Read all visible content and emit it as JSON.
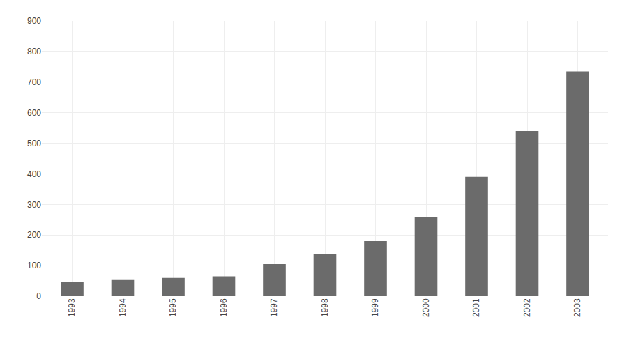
{
  "chart_data": {
    "type": "bar",
    "categories": [
      "1993",
      "1994",
      "1995",
      "1996",
      "1997",
      "1998",
      "1999",
      "2000",
      "2001",
      "2002",
      "2003"
    ],
    "values": [
      48,
      53,
      60,
      65,
      105,
      138,
      180,
      260,
      390,
      540,
      735
    ],
    "color": "#6b6b6b",
    "ylim": [
      0,
      900
    ],
    "yticks": [
      0,
      100,
      200,
      300,
      400,
      500,
      600,
      700,
      800,
      900
    ],
    "grid": true
  }
}
